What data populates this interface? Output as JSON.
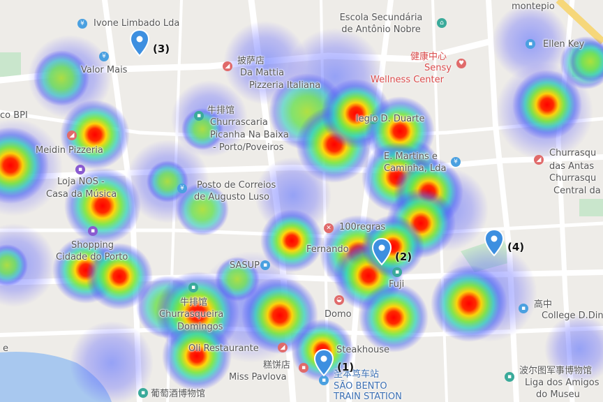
{
  "map": {
    "colors": {
      "background": "#eeece8",
      "road": "#ffffff",
      "park": "#c9e6cc",
      "water": "#a8c8ef",
      "marker": "#3d8fe0",
      "poi_blue": "#4aa0e0",
      "poi_red": "#e06a6a",
      "poi_teal": "#3aaa9a",
      "poi_purple": "#8a5ad0"
    }
  },
  "labels": {
    "ivone": "Ivone Limbado Lda",
    "valor": "Valor Mais",
    "bpi": "co BPI",
    "pizza_cn": "披萨店",
    "damattia": "Da Mattia",
    "pizzeria_italiana": "Pizzeria Italiana",
    "escola1": "Escola Secundária",
    "escola2": "de Antônio Nobre",
    "montepio": "montepio",
    "health_cn": "健康中心",
    "sensy": "Sensy",
    "wellness": "Wellness Center",
    "ellen": "Ellen Key",
    "steak_cn": "牛排馆",
    "churrascaria": "Churrascaria",
    "picanha": "Picanha Na Baixa",
    "porto_poveiros": "- Porto/Poveiros",
    "duarte": "legio D. Duarte",
    "meidin": "Meidin Pizzeria",
    "emartins1": "E. Martins e",
    "emartins2": "Caminha, Lda",
    "churrasq1": "Churrasqu",
    "churrasq2": "das Antas",
    "churrasq3": "Churrasqu",
    "churrasq4": "Central da",
    "loja1": "Loja NOS -",
    "loja2": "Casa da Música",
    "correios1": "Posto de Correios",
    "correios2": "de Augusto Luso",
    "regras": "100regras",
    "fernando": "Fernando",
    "shopping1": "Shopping",
    "shopping2": "Cidade do Porto",
    "sasup": "SASUP",
    "fuji": "Fuji",
    "hs_cn": "高中",
    "college": "College D.Din",
    "churr_cn": "牛排馆",
    "cheira": "Churrasqueira",
    "domingos": "Domingos",
    "domo": "Domo",
    "oli": "Oli Restaurante",
    "steakhouse": "Steakhouse",
    "cake_cn": "糕饼店",
    "pavlova": "Miss Pavlova",
    "station_cn": "圣本笃车站",
    "saobento": "SÃO BENTO",
    "train": "TRAIN STATION",
    "wine_cn": "葡萄酒博物馆",
    "museum_cn": "波尔图军事博物馆",
    "liga": "Liga dos Amigos",
    "museu": "do Museu",
    "e_letter": "e"
  },
  "markers": [
    {
      "id": "1",
      "label": "(1)"
    },
    {
      "id": "2",
      "label": "(2)"
    },
    {
      "id": "3",
      "label": "(3)"
    },
    {
      "id": "4",
      "label": "(4)"
    }
  ],
  "heatmap": {
    "legend": "none",
    "hotspots_count": 24
  }
}
